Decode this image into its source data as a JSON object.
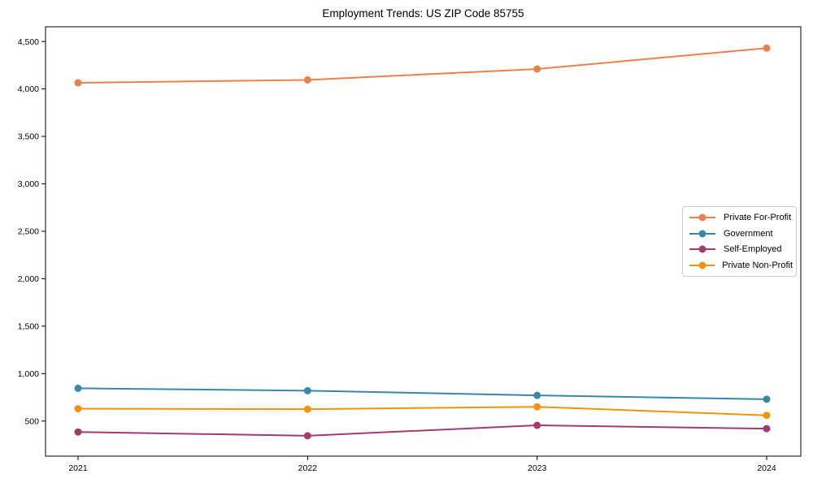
{
  "figure": {
    "background": "#ffffff",
    "spine_color": "#000000",
    "text_color": "#000000",
    "legend_border_color": "#cccccc"
  },
  "chart_data": {
    "type": "line",
    "title": "Employment Trends: US ZIP Code 85755",
    "xlabel": "",
    "ylabel": "",
    "x_categories": [
      "2021",
      "2022",
      "2023",
      "2024"
    ],
    "series": [
      {
        "name": "Private For-Profit",
        "color": "#E8814B",
        "values": [
          4065,
          4095,
          4210,
          4430
        ]
      },
      {
        "name": "Government",
        "color": "#3A88A9",
        "values": [
          845,
          820,
          770,
          730
        ]
      },
      {
        "name": "Self-Employed",
        "color": "#A23B72",
        "values": [
          385,
          345,
          455,
          420
        ]
      },
      {
        "name": "Private Non-Profit",
        "color": "#F1930C",
        "values": [
          630,
          625,
          650,
          560
        ]
      }
    ],
    "ylim": [
      130,
      4655
    ],
    "yticks": [
      {
        "value": 500,
        "label": "500"
      },
      {
        "value": 1000,
        "label": "1,000"
      },
      {
        "value": 1500,
        "label": "1,500"
      },
      {
        "value": 2000,
        "label": "2,000"
      },
      {
        "value": 2500,
        "label": "2,500"
      },
      {
        "value": 3000,
        "label": "3,000"
      },
      {
        "value": 3500,
        "label": "3,500"
      },
      {
        "value": 4000,
        "label": "4,000"
      },
      {
        "value": 4500,
        "label": "4,500"
      }
    ],
    "grid": false,
    "legend_position": "center right",
    "legend_entries": [
      "Private For-Profit",
      "Government",
      "Self-Employed",
      "Private Non-Profit"
    ]
  }
}
